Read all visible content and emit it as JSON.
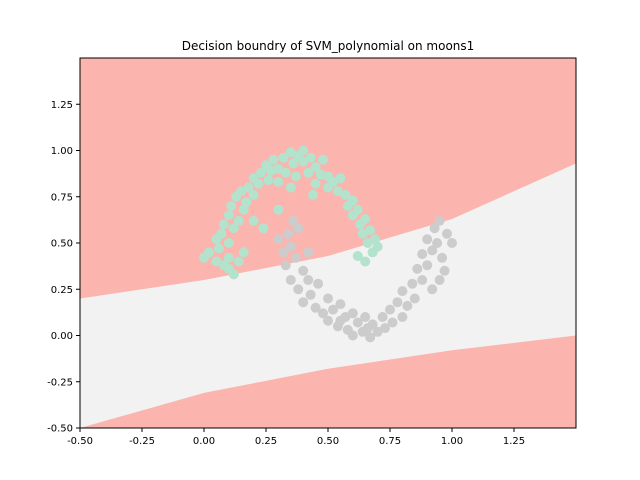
{
  "chart_data": {
    "type": "scatter",
    "title": "Decision boundry of SVM_polynomial on moons1",
    "xlabel": "",
    "ylabel": "",
    "xlim": [
      -0.5,
      1.5
    ],
    "ylim": [
      -0.5,
      1.5
    ],
    "x_ticks": [
      "-0.50",
      "-0.25",
      "0.00",
      "0.25",
      "0.50",
      "0.75",
      "1.00",
      "1.25"
    ],
    "x_tick_values": [
      -0.5,
      -0.25,
      0.0,
      0.25,
      0.5,
      0.75,
      1.0,
      1.25
    ],
    "y_ticks": [
      "-0.50",
      "-0.25",
      "0.00",
      "0.25",
      "0.50",
      "0.75",
      "1.00",
      "1.25"
    ],
    "y_tick_values": [
      -0.5,
      -0.25,
      0.0,
      0.25,
      0.5,
      0.75,
      1.0,
      1.25
    ],
    "grid": false,
    "legend": "none",
    "colors": {
      "region_class0": "#fbb4ae",
      "region_class1": "#f2f2f2",
      "points_class0": "#b3e2cd",
      "points_class1": "#cccccc"
    },
    "decision_boundaries": {
      "upper_boundary": [
        [
          -0.5,
          0.2
        ],
        [
          0.0,
          0.3
        ],
        [
          0.5,
          0.43
        ],
        [
          1.0,
          0.63
        ],
        [
          1.5,
          0.93
        ]
      ],
      "lower_boundary": [
        [
          -0.5,
          -0.5
        ],
        [
          0.0,
          -0.31
        ],
        [
          0.5,
          -0.18
        ],
        [
          1.0,
          -0.08
        ],
        [
          1.5,
          0.0
        ]
      ]
    },
    "series": [
      {
        "class": 0,
        "points": [
          [
            0.0,
            0.42
          ],
          [
            0.02,
            0.45
          ],
          [
            0.05,
            0.4
          ],
          [
            0.05,
            0.52
          ],
          [
            0.06,
            0.47
          ],
          [
            0.07,
            0.55
          ],
          [
            0.08,
            0.6
          ],
          [
            0.08,
            0.38
          ],
          [
            0.1,
            0.65
          ],
          [
            0.1,
            0.36
          ],
          [
            0.1,
            0.5
          ],
          [
            0.11,
            0.7
          ],
          [
            0.12,
            0.58
          ],
          [
            0.12,
            0.33
          ],
          [
            0.13,
            0.75
          ],
          [
            0.14,
            0.62
          ],
          [
            0.15,
            0.78
          ],
          [
            0.16,
            0.68
          ],
          [
            0.17,
            0.72
          ],
          [
            0.18,
            0.8
          ],
          [
            0.2,
            0.76
          ],
          [
            0.2,
            0.85
          ],
          [
            0.22,
            0.82
          ],
          [
            0.23,
            0.88
          ],
          [
            0.25,
            0.92
          ],
          [
            0.26,
            0.84
          ],
          [
            0.27,
            0.89
          ],
          [
            0.28,
            0.95
          ],
          [
            0.3,
            0.9
          ],
          [
            0.3,
            0.83
          ],
          [
            0.32,
            0.96
          ],
          [
            0.33,
            0.88
          ],
          [
            0.35,
            0.99
          ],
          [
            0.36,
            0.93
          ],
          [
            0.37,
            0.86
          ],
          [
            0.38,
            0.97
          ],
          [
            0.4,
            0.94
          ],
          [
            0.4,
            1.0
          ],
          [
            0.42,
            0.88
          ],
          [
            0.43,
            0.96
          ],
          [
            0.45,
            0.91
          ],
          [
            0.45,
            0.82
          ],
          [
            0.47,
            0.87
          ],
          [
            0.48,
            0.95
          ],
          [
            0.5,
            0.86
          ],
          [
            0.5,
            0.8
          ],
          [
            0.52,
            0.83
          ],
          [
            0.54,
            0.78
          ],
          [
            0.55,
            0.85
          ],
          [
            0.57,
            0.76
          ],
          [
            0.58,
            0.7
          ],
          [
            0.6,
            0.73
          ],
          [
            0.6,
            0.65
          ],
          [
            0.62,
            0.68
          ],
          [
            0.63,
            0.6
          ],
          [
            0.64,
            0.55
          ],
          [
            0.65,
            0.63
          ],
          [
            0.66,
            0.5
          ],
          [
            0.67,
            0.57
          ],
          [
            0.68,
            0.45
          ],
          [
            0.69,
            0.52
          ],
          [
            0.7,
            0.48
          ],
          [
            0.65,
            0.4
          ],
          [
            0.62,
            0.43
          ],
          [
            0.24,
            0.58
          ],
          [
            0.3,
            0.68
          ],
          [
            0.2,
            0.62
          ],
          [
            0.16,
            0.45
          ],
          [
            0.1,
            0.42
          ],
          [
            0.14,
            0.4
          ],
          [
            0.35,
            0.8
          ],
          [
            0.44,
            0.76
          ]
        ]
      },
      {
        "class": 1,
        "points": [
          [
            0.3,
            0.52
          ],
          [
            0.32,
            0.45
          ],
          [
            0.33,
            0.38
          ],
          [
            0.35,
            0.48
          ],
          [
            0.35,
            0.3
          ],
          [
            0.37,
            0.42
          ],
          [
            0.38,
            0.25
          ],
          [
            0.4,
            0.35
          ],
          [
            0.4,
            0.18
          ],
          [
            0.42,
            0.3
          ],
          [
            0.43,
            0.22
          ],
          [
            0.45,
            0.15
          ],
          [
            0.46,
            0.28
          ],
          [
            0.48,
            0.12
          ],
          [
            0.5,
            0.2
          ],
          [
            0.5,
            0.08
          ],
          [
            0.52,
            0.14
          ],
          [
            0.54,
            0.05
          ],
          [
            0.55,
            0.17
          ],
          [
            0.57,
            0.1
          ],
          [
            0.58,
            0.03
          ],
          [
            0.6,
            0.12
          ],
          [
            0.6,
            0.0
          ],
          [
            0.62,
            0.07
          ],
          [
            0.64,
            0.02
          ],
          [
            0.65,
            0.1
          ],
          [
            0.67,
            -0.01
          ],
          [
            0.68,
            0.06
          ],
          [
            0.7,
            0.02
          ],
          [
            0.72,
            0.1
          ],
          [
            0.73,
            0.04
          ],
          [
            0.75,
            0.14
          ],
          [
            0.76,
            0.07
          ],
          [
            0.78,
            0.18
          ],
          [
            0.8,
            0.1
          ],
          [
            0.8,
            0.24
          ],
          [
            0.82,
            0.16
          ],
          [
            0.84,
            0.28
          ],
          [
            0.85,
            0.2
          ],
          [
            0.86,
            0.36
          ],
          [
            0.88,
            0.3
          ],
          [
            0.88,
            0.44
          ],
          [
            0.9,
            0.38
          ],
          [
            0.9,
            0.52
          ],
          [
            0.92,
            0.46
          ],
          [
            0.93,
            0.58
          ],
          [
            0.94,
            0.5
          ],
          [
            0.95,
            0.62
          ],
          [
            0.96,
            0.42
          ],
          [
            0.98,
            0.55
          ],
          [
            1.0,
            0.5
          ],
          [
            0.97,
            0.35
          ],
          [
            0.92,
            0.25
          ],
          [
            0.95,
            0.3
          ],
          [
            0.36,
            0.62
          ],
          [
            0.38,
            0.58
          ],
          [
            0.34,
            0.55
          ],
          [
            0.42,
            0.45
          ],
          [
            0.55,
            0.08
          ],
          [
            0.66,
            0.04
          ]
        ]
      }
    ]
  }
}
